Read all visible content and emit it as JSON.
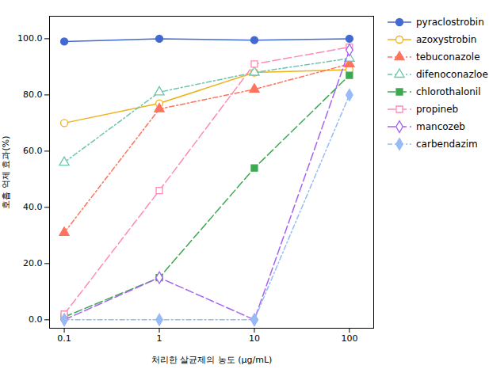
{
  "chart_data": {
    "type": "line",
    "x": [
      0.1,
      1,
      10,
      100
    ],
    "series": [
      {
        "name": "pyraclostrobin",
        "values": [
          99.0,
          100.0,
          99.5,
          100.0
        ],
        "marker": "circle",
        "line_style": "solid"
      },
      {
        "name": "azoxystrobin",
        "values": [
          70.0,
          77.0,
          88.0,
          89.0
        ],
        "marker": "circle-open",
        "line_style": "solid"
      },
      {
        "name": "tebuconazole",
        "values": [
          31.0,
          75.0,
          82.0,
          91.0
        ],
        "marker": "triangle",
        "line_style": "dashdot"
      },
      {
        "name": "difenoconazloe",
        "values": [
          56.0,
          81.0,
          88.0,
          93.0
        ],
        "marker": "triangle-open",
        "line_style": "dashdot"
      },
      {
        "name": "chlorothalonil",
        "values": [
          1.0,
          15.0,
          54.0,
          87.0
        ],
        "marker": "square",
        "line_style": "dashed"
      },
      {
        "name": "propineb",
        "values": [
          2.0,
          46.0,
          91.0,
          97.0
        ],
        "marker": "square-open",
        "line_style": "dashed"
      },
      {
        "name": "mancozeb",
        "values": [
          0.0,
          15.0,
          0.0,
          96.0
        ],
        "marker": "diamond-open",
        "line_style": "dashed"
      },
      {
        "name": "carbendazim",
        "values": [
          0.0,
          0.0,
          0.0,
          80.0
        ],
        "marker": "diamond",
        "line_style": "dashdot"
      }
    ],
    "xlabel": "처리한 살균제의 농도 (μg/mL)",
    "ylabel": "호흡 억제 효과(%)",
    "xlim": [
      0.07,
      180
    ],
    "xticks": [
      0.1,
      1,
      10,
      100
    ],
    "ylim": [
      -3,
      108
    ],
    "yticks": [
      {
        "value": 0,
        "label": "0.0"
      },
      {
        "value": 20,
        "label": "20.0"
      },
      {
        "value": 40,
        "label": "40.0"
      },
      {
        "value": 60,
        "label": "60.0"
      },
      {
        "value": 80,
        "label": "80.0"
      },
      {
        "value": 100,
        "label": "100.0"
      }
    ],
    "log": "x",
    "grid": false,
    "legend": "right"
  }
}
